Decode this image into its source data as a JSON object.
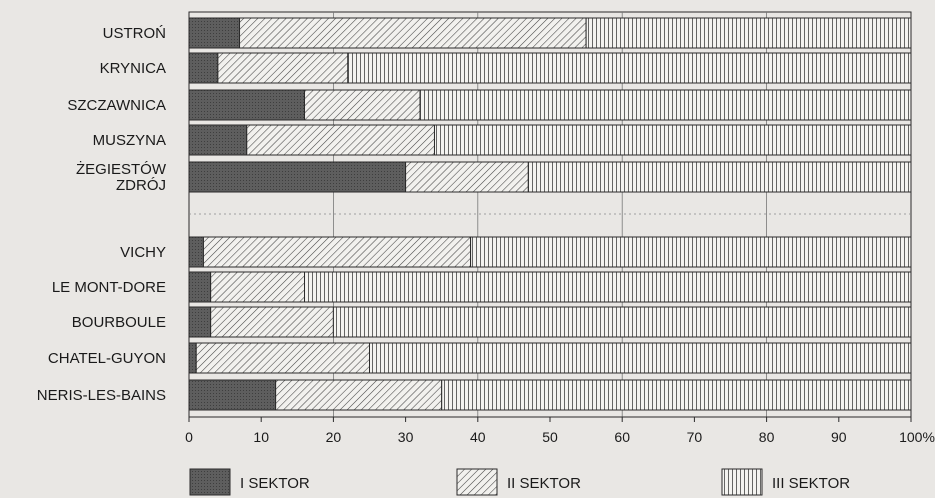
{
  "chart_data": {
    "type": "bar",
    "orientation": "horizontal",
    "stacked": true,
    "categories": [
      "USTROŃ",
      "KRYNICA",
      "SZCZAWNICA",
      "MUSZYNA",
      "ŻEGIESTÓW ZDRÓJ",
      "VICHY",
      "LE MONT-DORE",
      "BOURBOULE",
      "CHATEL-GUYON",
      "NERIS-LES-BAINS"
    ],
    "category_lines": [
      [
        "USTROŃ"
      ],
      [
        "KRYNICA"
      ],
      [
        "SZCZAWNICA"
      ],
      [
        "MUSZYNA"
      ],
      [
        "ŻEGIESTÓW",
        "ZDRÓJ"
      ],
      [
        "VICHY"
      ],
      [
        "LE MONT-DORE"
      ],
      [
        "BOURBOULE"
      ],
      [
        "CHATEL-GUYON"
      ],
      [
        "NERIS-LES-BAINS"
      ]
    ],
    "series": [
      {
        "name": "I SEKTOR",
        "values": [
          7,
          4,
          16,
          8,
          30,
          2,
          3,
          3,
          1,
          12
        ],
        "fill": "dark"
      },
      {
        "name": "II SEKTOR",
        "values": [
          48,
          18,
          16,
          26,
          17,
          37,
          13,
          17,
          24,
          23
        ],
        "fill": "diagonal"
      },
      {
        "name": "III SEKTOR",
        "values": [
          45,
          78,
          68,
          66,
          53,
          61,
          84,
          80,
          75,
          65
        ],
        "fill": "vertical"
      }
    ],
    "xlim": [
      0,
      100
    ],
    "ticks": [
      "0",
      "10",
      "20",
      "30",
      "40",
      "50",
      "60",
      "70",
      "80",
      "90",
      "100%"
    ],
    "grid": true,
    "legend": "bottom",
    "colors": {
      "dark": "#5a5a5a",
      "line": "#2a2a2a",
      "background": "#e9e7e4"
    }
  }
}
